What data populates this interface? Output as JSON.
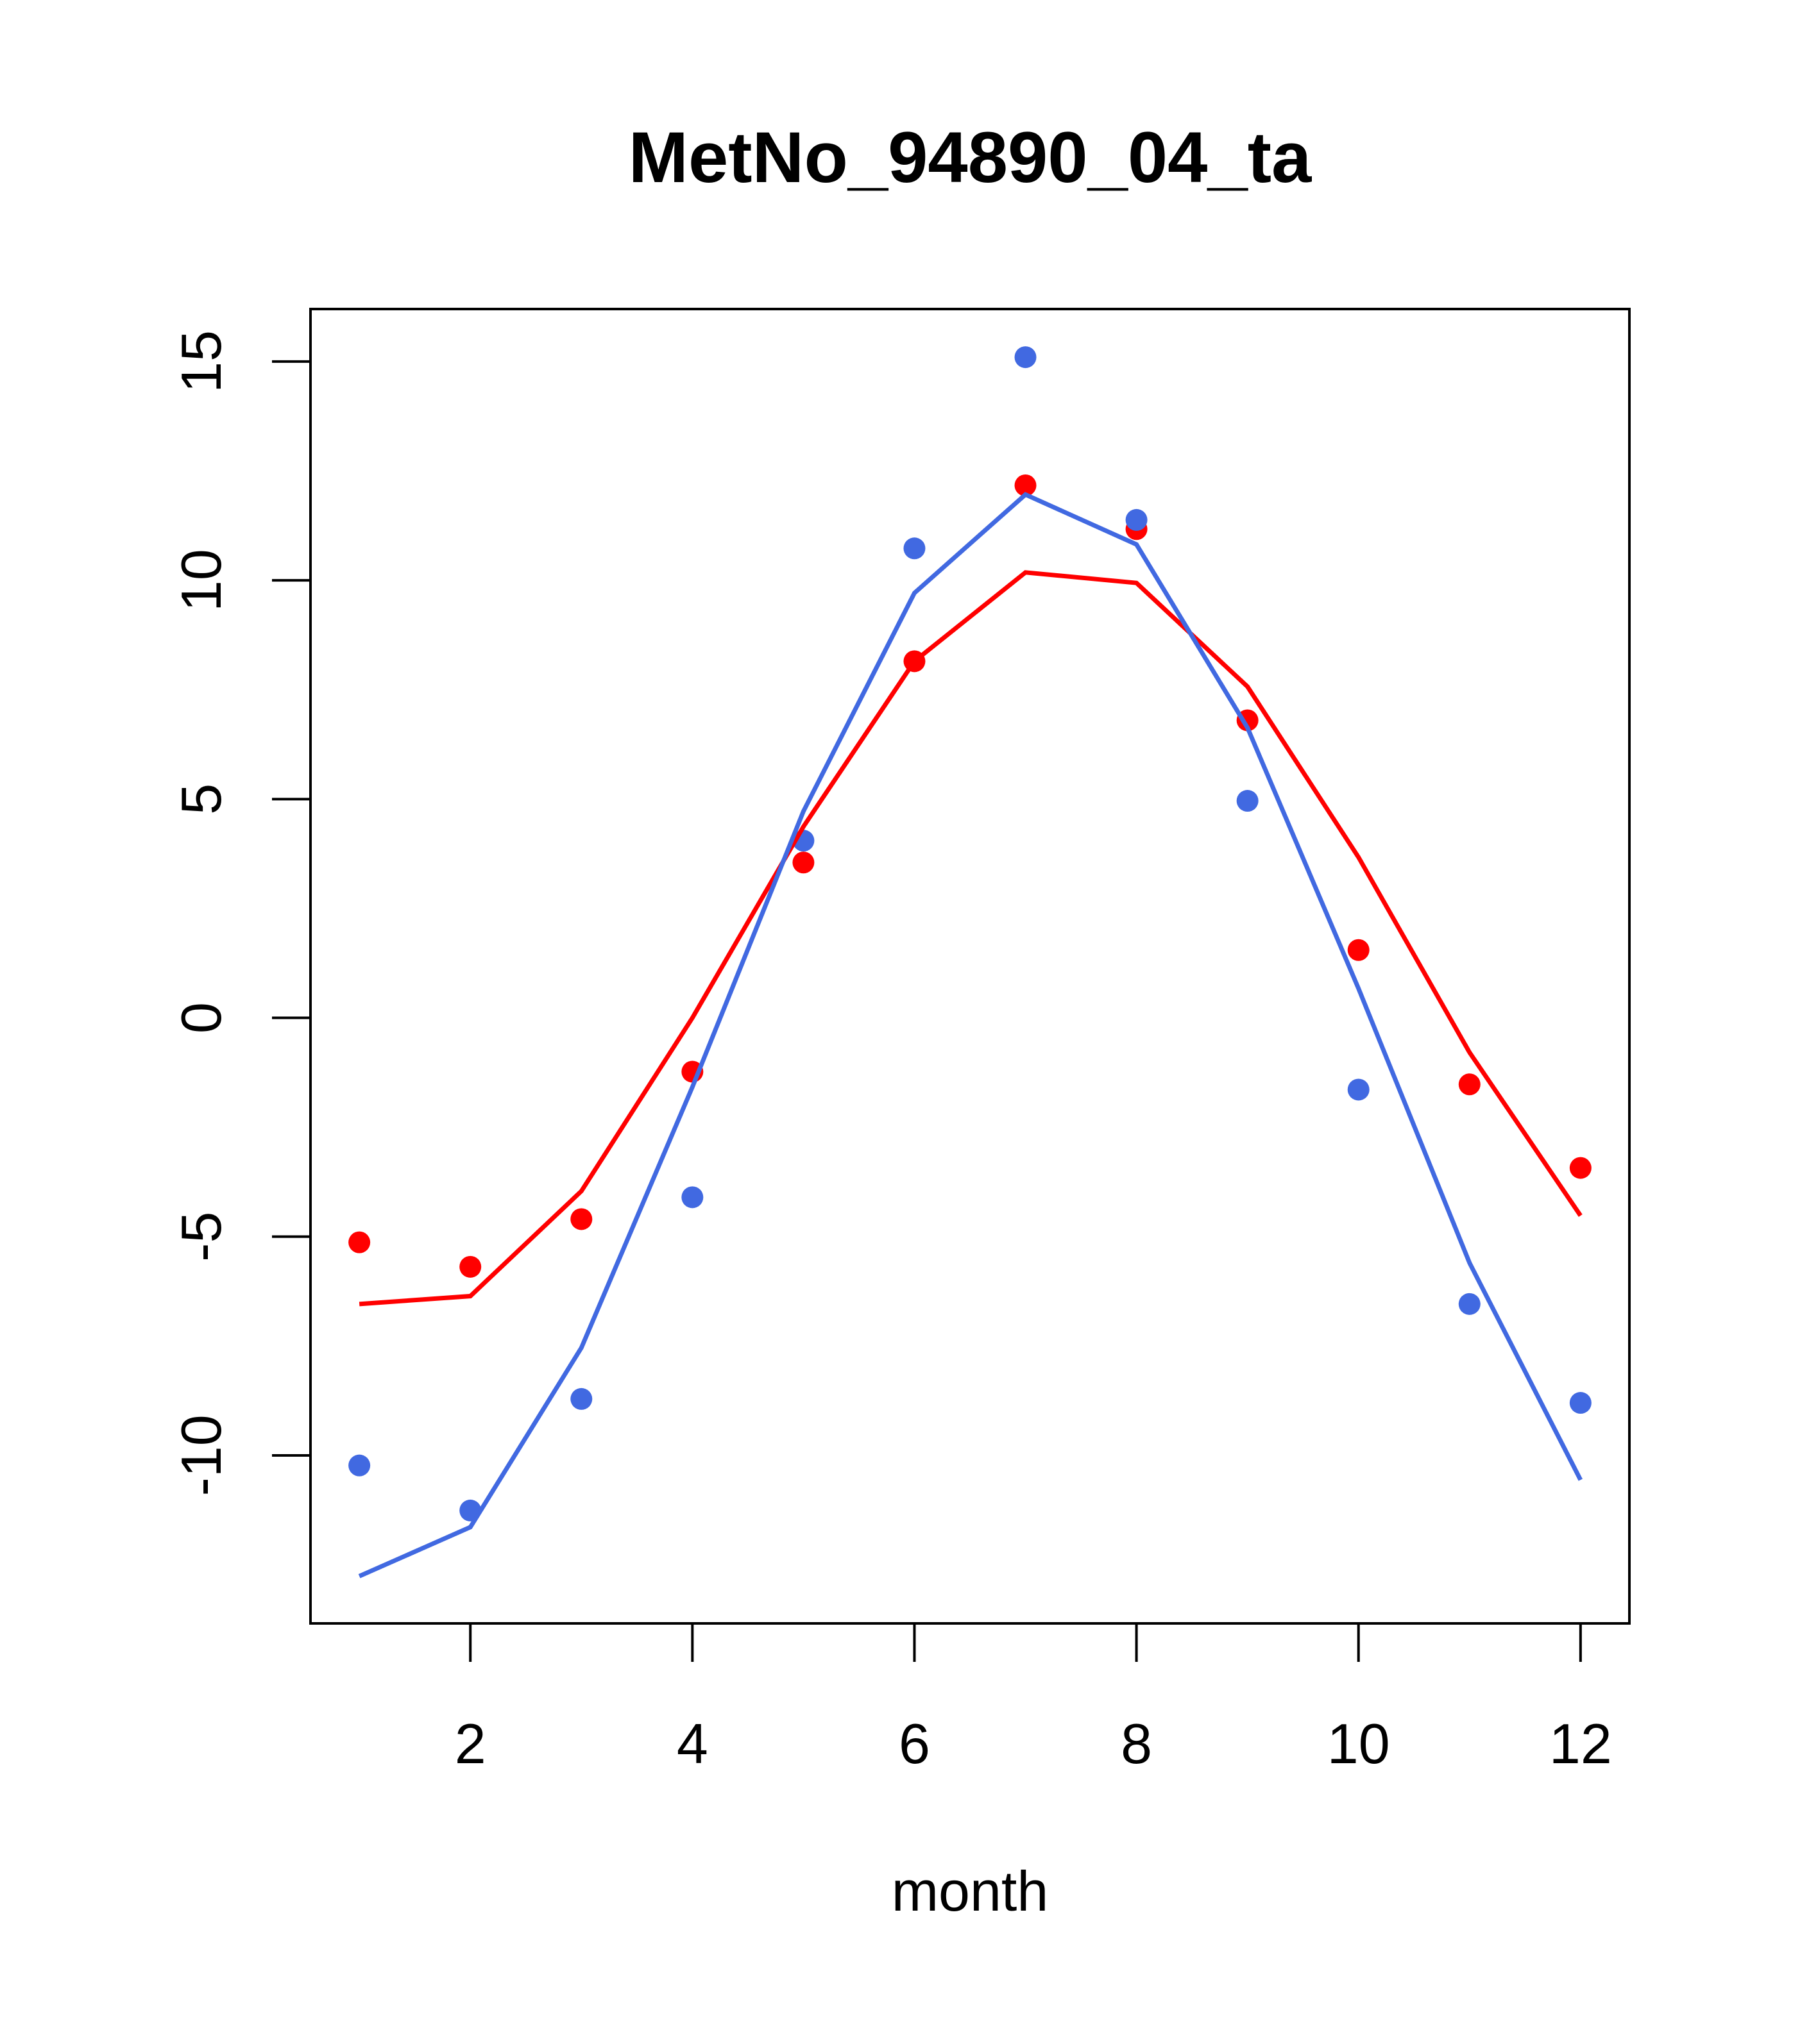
{
  "chart_data": {
    "type": "line",
    "title": "MetNo_94890_04_ta",
    "xlabel": "month",
    "ylabel": "",
    "xlim": [
      0.56,
      12.44
    ],
    "ylim": [
      -13.84,
      16.2
    ],
    "xticks": [
      2,
      4,
      6,
      8,
      10,
      12
    ],
    "yticks": [
      -10,
      -5,
      0,
      5,
      10,
      15
    ],
    "grid": false,
    "x": [
      1,
      2,
      3,
      4,
      5,
      6,
      7,
      8,
      9,
      10,
      11,
      12
    ],
    "series": [
      {
        "name": "red points",
        "kind": "points",
        "color": "#FF0000",
        "values": [
          -5.13,
          -5.69,
          -4.6,
          -1.23,
          3.55,
          8.15,
          12.17,
          11.17,
          6.8,
          1.55,
          -1.52,
          -3.43
        ]
      },
      {
        "name": "blue points",
        "kind": "points",
        "color": "#4169E1",
        "values": [
          -10.23,
          -11.26,
          -8.71,
          -4.1,
          4.05,
          10.73,
          15.1,
          11.38,
          4.96,
          -1.64,
          -6.54,
          -8.8
        ]
      },
      {
        "name": "red line",
        "kind": "line",
        "color": "#FF0000",
        "values": [
          -6.54,
          -6.36,
          -3.96,
          0.0,
          4.37,
          8.15,
          10.18,
          9.94,
          7.57,
          3.67,
          -0.79,
          -4.52
        ]
      },
      {
        "name": "blue line",
        "kind": "line",
        "color": "#4169E1",
        "values": [
          -12.76,
          -11.64,
          -7.54,
          -1.58,
          4.72,
          9.71,
          11.96,
          10.82,
          6.63,
          0.67,
          -5.6,
          -10.56
        ]
      }
    ]
  }
}
